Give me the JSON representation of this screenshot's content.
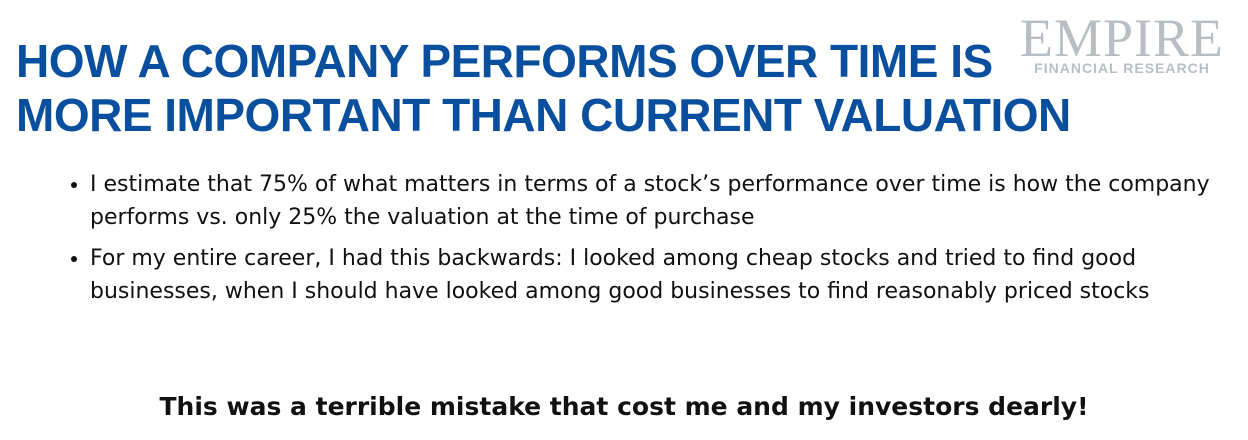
{
  "header": {
    "title_lines": [
      "HOW A COMPANY PERFORMS OVER TIME IS",
      "MORE IMPORTANT THAN CURRENT VALUATION"
    ],
    "logo": {
      "name": "EMPIRE",
      "subtitle": "FINANCIAL RESEARCH"
    }
  },
  "bullets": [
    "I estimate that 75% of what matters in terms of a stock’s performance over time is how the company performs vs. only 25% the valuation at the time of purchase",
    "For my entire career, I had this backwards: I looked among cheap stocks and tried to find good businesses, when I should have looked among good businesses to find reasonably priced stocks"
  ],
  "conclusion": "This was a terrible mistake that cost me and my investors dearly!"
}
